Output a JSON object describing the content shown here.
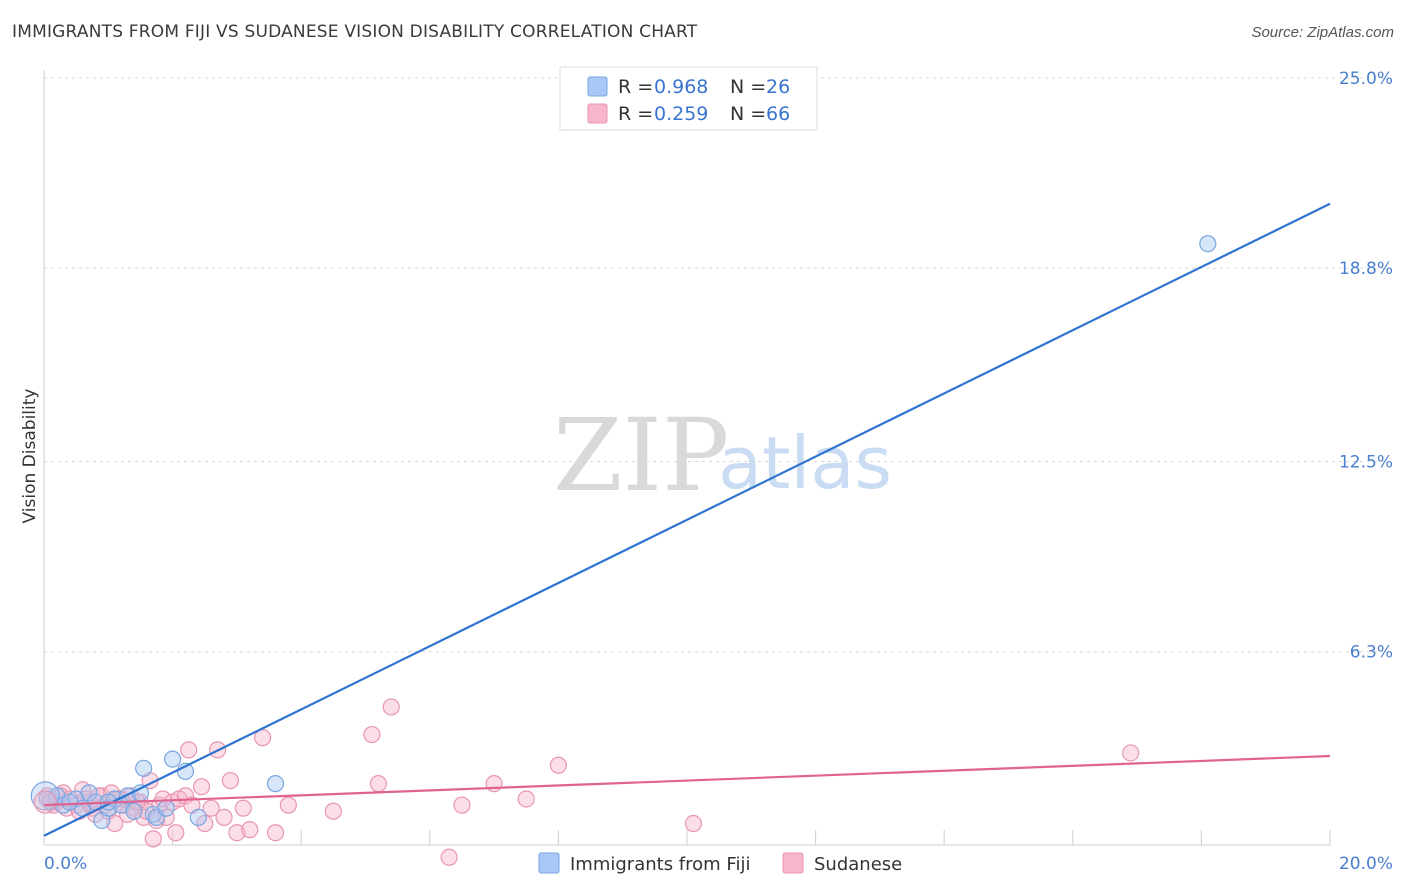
{
  "header": {
    "title": "IMMIGRANTS FROM FIJI VS SUDANESE VISION DISABILITY CORRELATION CHART",
    "source": "Source: ZipAtlas.com"
  },
  "watermark": {
    "zip": "ZIP",
    "atlas": "atlas"
  },
  "legend": {
    "rows": [
      {
        "r_label": "R = ",
        "r_value": "0.968",
        "n_label": "N = ",
        "n_value": "26",
        "color": "#a9c8f5"
      },
      {
        "r_label": "R = ",
        "r_value": "0.259",
        "n_label": "N = ",
        "n_value": "66",
        "color": "#f7b6c9"
      }
    ]
  },
  "bottom_legend": [
    {
      "label": "Immigrants from Fiji",
      "color": "#a9c8f5"
    },
    {
      "label": "Sudanese",
      "color": "#f7b6c9"
    }
  ],
  "chart_data": {
    "type": "scatter",
    "title": "IMMIGRANTS FROM FIJI VS SUDANESE VISION DISABILITY CORRELATION CHART",
    "xlabel": "",
    "ylabel": "Vision Disability",
    "xlim": [
      0,
      20
    ],
    "ylim": [
      0,
      25
    ],
    "x_tick_labels": [
      "0.0%",
      "20.0%"
    ],
    "y_ticks": [
      6.3,
      12.5,
      18.8,
      25.0
    ],
    "y_tick_labels": [
      "6.3%",
      "12.5%",
      "18.8%",
      "25.0%"
    ],
    "grid": true,
    "legend_position": "top-center",
    "series": [
      {
        "name": "Immigrants from Fiji",
        "color": "#a9c8f5",
        "line_color": "#2f74d0",
        "trend": {
          "x": [
            0,
            20
          ],
          "y": [
            0.3,
            20.9
          ]
        },
        "points": [
          [
            0.05,
            1.5
          ],
          [
            0.1,
            1.4
          ],
          [
            0.2,
            1.6
          ],
          [
            0.3,
            1.3
          ],
          [
            0.5,
            1.5
          ],
          [
            0.6,
            1.2
          ],
          [
            0.7,
            1.7
          ],
          [
            0.8,
            1.4
          ],
          [
            0.9,
            0.8
          ],
          [
            1.0,
            1.2
          ],
          [
            1.1,
            1.5
          ],
          [
            1.2,
            1.3
          ],
          [
            1.3,
            1.6
          ],
          [
            1.4,
            1.1
          ],
          [
            1.5,
            1.7
          ],
          [
            1.55,
            2.5
          ],
          [
            1.7,
            1.0
          ],
          [
            1.75,
            0.9
          ],
          [
            1.9,
            1.2
          ],
          [
            2.0,
            2.8
          ],
          [
            2.2,
            2.4
          ],
          [
            2.4,
            0.9
          ],
          [
            3.6,
            2.0
          ],
          [
            18.1,
            19.6
          ],
          [
            0.4,
            1.4
          ],
          [
            1.0,
            1.4
          ]
        ]
      },
      {
        "name": "Sudanese",
        "color": "#f7b6c9",
        "line_color": "#e0648f",
        "trend": {
          "x": [
            0,
            20
          ],
          "y": [
            1.3,
            2.9
          ]
        },
        "points": [
          [
            0.05,
            1.6
          ],
          [
            0.1,
            1.5
          ],
          [
            0.15,
            1.3
          ],
          [
            0.2,
            1.4
          ],
          [
            0.3,
            1.7
          ],
          [
            0.35,
            1.2
          ],
          [
            0.4,
            1.5
          ],
          [
            0.5,
            1.3
          ],
          [
            0.55,
            1.1
          ],
          [
            0.6,
            1.8
          ],
          [
            0.7,
            1.4
          ],
          [
            0.75,
            1.2
          ],
          [
            0.8,
            1.0
          ],
          [
            0.9,
            1.6
          ],
          [
            0.95,
            1.3
          ],
          [
            1.0,
            1.1
          ],
          [
            1.05,
            1.7
          ],
          [
            1.1,
            0.7
          ],
          [
            1.2,
            1.5
          ],
          [
            1.25,
            1.3
          ],
          [
            1.3,
            1.0
          ],
          [
            1.35,
            1.6
          ],
          [
            1.4,
            1.2
          ],
          [
            1.5,
            1.4
          ],
          [
            1.55,
            0.9
          ],
          [
            1.6,
            1.1
          ],
          [
            1.65,
            2.1
          ],
          [
            1.7,
            0.2
          ],
          [
            1.75,
            0.8
          ],
          [
            1.8,
            1.3
          ],
          [
            1.85,
            1.5
          ],
          [
            1.9,
            0.9
          ],
          [
            2.0,
            1.4
          ],
          [
            2.05,
            0.4
          ],
          [
            2.1,
            1.5
          ],
          [
            2.2,
            1.6
          ],
          [
            2.25,
            3.1
          ],
          [
            2.3,
            1.3
          ],
          [
            2.45,
            1.9
          ],
          [
            2.5,
            0.7
          ],
          [
            2.6,
            1.2
          ],
          [
            2.7,
            3.1
          ],
          [
            2.8,
            0.9
          ],
          [
            2.9,
            2.1
          ],
          [
            3.0,
            0.4
          ],
          [
            3.1,
            1.2
          ],
          [
            3.2,
            0.5
          ],
          [
            3.4,
            3.5
          ],
          [
            3.6,
            0.4
          ],
          [
            3.8,
            1.3
          ],
          [
            4.5,
            1.1
          ],
          [
            5.1,
            3.6
          ],
          [
            5.2,
            2.0
          ],
          [
            5.4,
            4.5
          ],
          [
            6.3,
            -0.4
          ],
          [
            6.5,
            1.3
          ],
          [
            7.0,
            2.0
          ],
          [
            7.5,
            1.5
          ],
          [
            8.0,
            2.6
          ],
          [
            10.1,
            0.7
          ],
          [
            16.9,
            3.0
          ],
          [
            0.25,
            1.6
          ],
          [
            0.65,
            1.5
          ],
          [
            1.45,
            1.4
          ],
          [
            0.85,
            1.6
          ],
          [
            1.15,
            1.5
          ]
        ]
      }
    ]
  }
}
